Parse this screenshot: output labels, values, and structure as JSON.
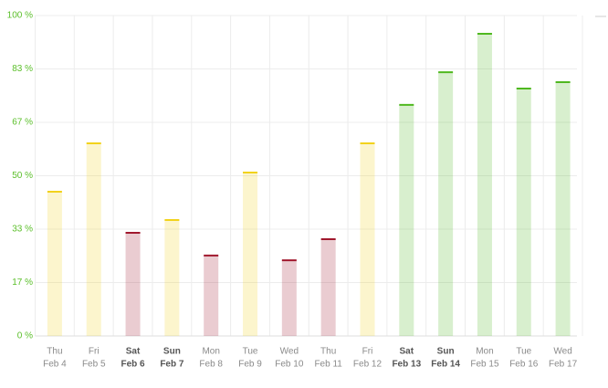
{
  "chart_data": {
    "type": "bar",
    "categories": [
      [
        "Thu",
        "Feb 4"
      ],
      [
        "Fri",
        "Feb 5"
      ],
      [
        "Sat",
        "Feb 6"
      ],
      [
        "Sun",
        "Feb 7"
      ],
      [
        "Mon",
        "Feb 8"
      ],
      [
        "Tue",
        "Feb 9"
      ],
      [
        "Wed",
        "Feb 10"
      ],
      [
        "Thu",
        "Feb 11"
      ],
      [
        "Fri",
        "Feb 12"
      ],
      [
        "Sat",
        "Feb 13"
      ],
      [
        "Sun",
        "Feb 14"
      ],
      [
        "Mon",
        "Feb 15"
      ],
      [
        "Tue",
        "Feb 16"
      ],
      [
        "Wed",
        "Feb 17"
      ]
    ],
    "values": [
      45.0,
      60.1,
      32.2,
      36.2,
      25.1,
      51.0,
      23.6,
      30.2,
      60.1,
      72.1,
      82.3,
      94.3,
      77.2,
      79.2
    ],
    "colors": [
      "#f2d21b",
      "#f2d21b",
      "#a0182d",
      "#f2d21b",
      "#a0182d",
      "#f2d21b",
      "#a0182d",
      "#a0182d",
      "#f2d21b",
      "#4fb81f",
      "#4fb81f",
      "#4fb81f",
      "#4fb81f",
      "#4fb81f"
    ],
    "emphasis": [
      false,
      false,
      true,
      true,
      false,
      false,
      false,
      false,
      false,
      true,
      true,
      false,
      false,
      false
    ],
    "ylim": [
      0,
      100
    ],
    "yticks": [
      {
        "value": 0,
        "label": "0 %"
      },
      {
        "value": 16.67,
        "label": "17 %"
      },
      {
        "value": 33.33,
        "label": "33 %"
      },
      {
        "value": 50,
        "label": "50 %"
      },
      {
        "value": 66.67,
        "label": "67 %"
      },
      {
        "value": 83.33,
        "label": "83 %"
      },
      {
        "value": 100,
        "label": "100 %"
      }
    ],
    "grid": true
  }
}
